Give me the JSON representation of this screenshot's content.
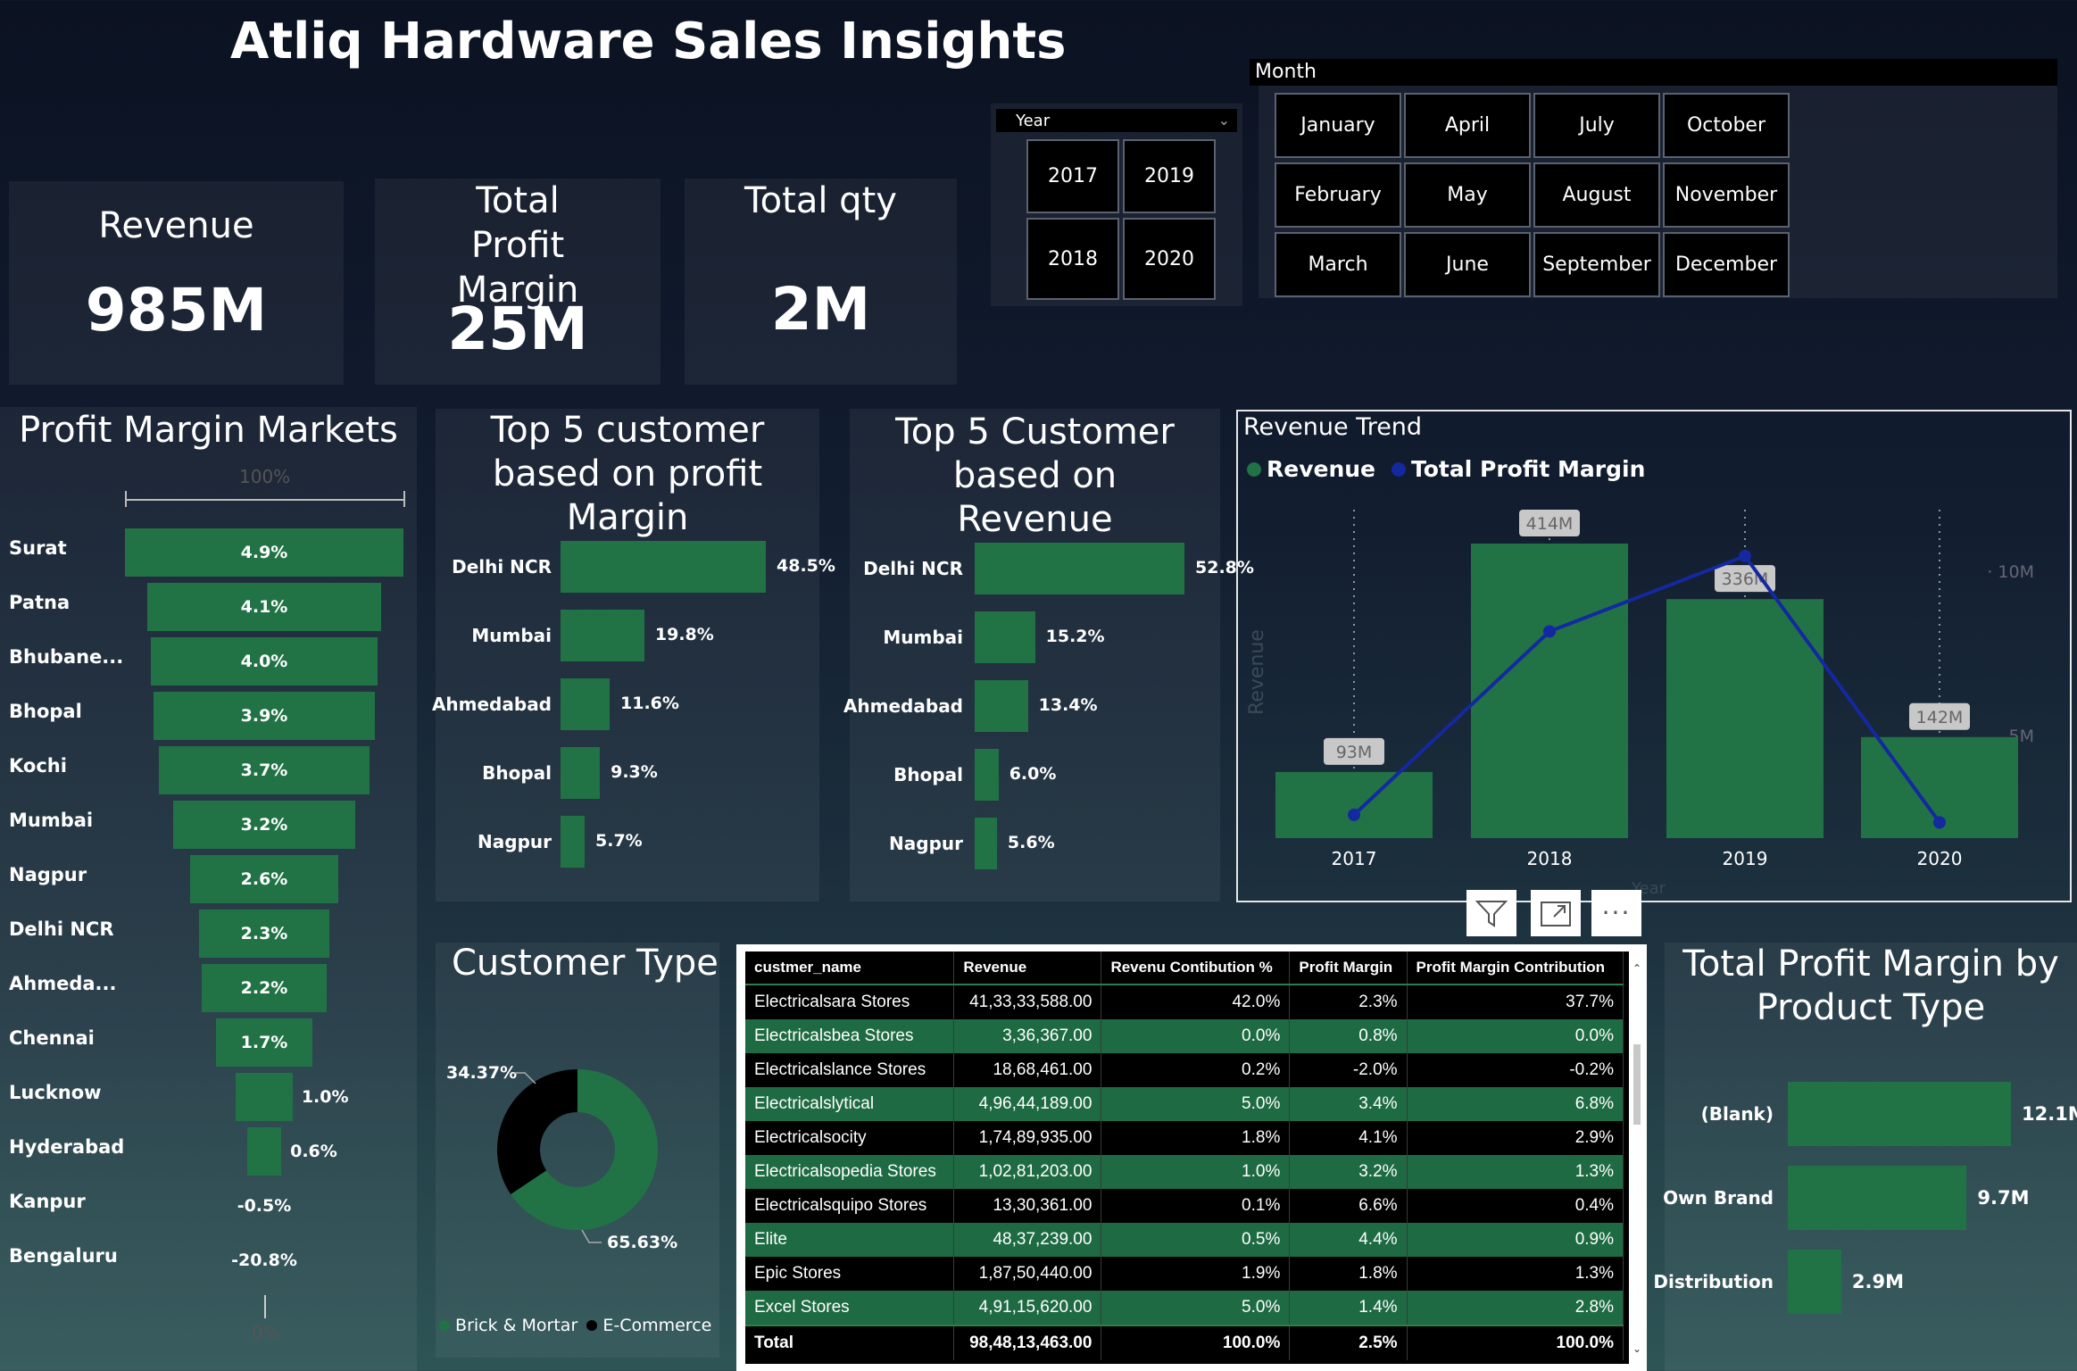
{
  "page": {
    "title": "Atliq Hardware Sales Insights"
  },
  "kpis": [
    {
      "label": "Revenue",
      "value": "985M"
    },
    {
      "label": "Total Profit Margin",
      "value": "25M"
    },
    {
      "label": "Total qty",
      "value": "2M"
    }
  ],
  "year_slicer": {
    "header": "Year",
    "options": [
      "2017",
      "2019",
      "2018",
      "2020"
    ]
  },
  "month_slicer": {
    "header": "Month",
    "options": [
      "January",
      "April",
      "July",
      "October",
      "February",
      "May",
      "August",
      "November",
      "March",
      "June",
      "September",
      "December"
    ]
  },
  "colors": {
    "green": "#217346",
    "blue": "#1428a0",
    "black": "#000000"
  },
  "chart_data": [
    {
      "id": "profit_margin_markets",
      "type": "bar",
      "title": "Profit Margin Markets",
      "axis_top_label": "100%",
      "axis_bottom_label": "0%",
      "categories": [
        "Surat",
        "Patna",
        "Bhubane...",
        "Bhopal",
        "Kochi",
        "Mumbai",
        "Nagpur",
        "Delhi NCR",
        "Ahmeda...",
        "Chennai",
        "Lucknow",
        "Hyderabad",
        "Kanpur",
        "Bengaluru"
      ],
      "values": [
        4.9,
        4.1,
        4.0,
        3.9,
        3.7,
        3.2,
        2.6,
        2.3,
        2.2,
        1.7,
        1.0,
        0.6,
        -0.5,
        -20.8
      ],
      "labels": [
        "4.9%",
        "4.1%",
        "4.0%",
        "3.9%",
        "3.7%",
        "3.2%",
        "2.6%",
        "2.3%",
        "2.2%",
        "1.7%",
        "1.0%",
        "0.6%",
        "-0.5%",
        "-20.8%"
      ]
    },
    {
      "id": "top5_profit",
      "type": "bar",
      "title": "Top 5 customer based on profit Margin",
      "categories": [
        "Delhi NCR",
        "Mumbai",
        "Ahmedabad",
        "Bhopal",
        "Nagpur"
      ],
      "values": [
        48.5,
        19.8,
        11.6,
        9.3,
        5.7
      ],
      "labels": [
        "48.5%",
        "19.8%",
        "11.6%",
        "9.3%",
        "5.7%"
      ]
    },
    {
      "id": "top5_revenue",
      "type": "bar",
      "title": "Top 5 Customer based on Revenue",
      "categories": [
        "Delhi NCR",
        "Mumbai",
        "Ahmedabad",
        "Bhopal",
        "Nagpur"
      ],
      "values": [
        52.8,
        15.2,
        13.4,
        6.0,
        5.6
      ],
      "labels": [
        "52.8%",
        "15.2%",
        "13.4%",
        "6.0%",
        "5.6%"
      ]
    },
    {
      "id": "revenue_trend",
      "type": "bar",
      "title": "Revenue Trend",
      "categories": [
        "2017",
        "2018",
        "2019",
        "2020"
      ],
      "ylabel": "Revenue",
      "y2_ticks": [
        "10M",
        "5M"
      ],
      "x_axis_title": "Year",
      "series": [
        {
          "name": "Revenue",
          "values": [
            93,
            414,
            336,
            142
          ],
          "labels": [
            "93M",
            "414M",
            "336M",
            "142M"
          ]
        },
        {
          "name": "Total Profit Margin",
          "values": [
            0.5,
            7.8,
            10.8,
            0.2
          ]
        }
      ]
    },
    {
      "id": "customer_type",
      "type": "pie",
      "title": "Customer Type",
      "categories": [
        "Brick & Mortar",
        "E-Commerce"
      ],
      "values": [
        65.63,
        34.37
      ],
      "labels": [
        "65.63%",
        "34.37%"
      ]
    },
    {
      "id": "profit_by_product",
      "type": "bar",
      "title": "Total Profit Margin by Product Type",
      "categories": [
        "(Blank)",
        "Own Brand",
        "Distribution"
      ],
      "values": [
        12.1,
        9.7,
        2.9
      ],
      "labels": [
        "12.1M",
        "9.7M",
        "2.9M"
      ]
    }
  ],
  "table": {
    "columns": [
      "custmer_name",
      "Revenue",
      "Revenu Contibution %",
      "Profit Margin",
      "Profit Margin Contribution"
    ],
    "rows": [
      [
        "Electricalsara Stores",
        "41,33,33,588.00",
        "42.0%",
        "2.3%",
        "37.7%"
      ],
      [
        "Electricalsbea Stores",
        "3,36,367.00",
        "0.0%",
        "0.8%",
        "0.0%"
      ],
      [
        "Electricalslance Stores",
        "18,68,461.00",
        "0.2%",
        "-2.0%",
        "-0.2%"
      ],
      [
        "Electricalslytical",
        "4,96,44,189.00",
        "5.0%",
        "3.4%",
        "6.8%"
      ],
      [
        "Electricalsocity",
        "1,74,89,935.00",
        "1.8%",
        "4.1%",
        "2.9%"
      ],
      [
        "Electricalsopedia Stores",
        "1,02,81,203.00",
        "1.0%",
        "3.2%",
        "1.3%"
      ],
      [
        "Electricalsquipo Stores",
        "13,30,361.00",
        "0.1%",
        "6.6%",
        "0.4%"
      ],
      [
        "Elite",
        "48,37,239.00",
        "0.5%",
        "4.4%",
        "0.9%"
      ],
      [
        "Epic Stores",
        "1,87,50,440.00",
        "1.9%",
        "1.8%",
        "1.3%"
      ],
      [
        "Excel Stores",
        "4,91,15,620.00",
        "5.0%",
        "1.4%",
        "2.8%"
      ]
    ],
    "total": [
      "Total",
      "98,48,13,463.00",
      "100.0%",
      "2.5%",
      "100.0%"
    ]
  },
  "icons": [
    "filter-icon",
    "focus-mode-icon",
    "more-options-icon"
  ]
}
